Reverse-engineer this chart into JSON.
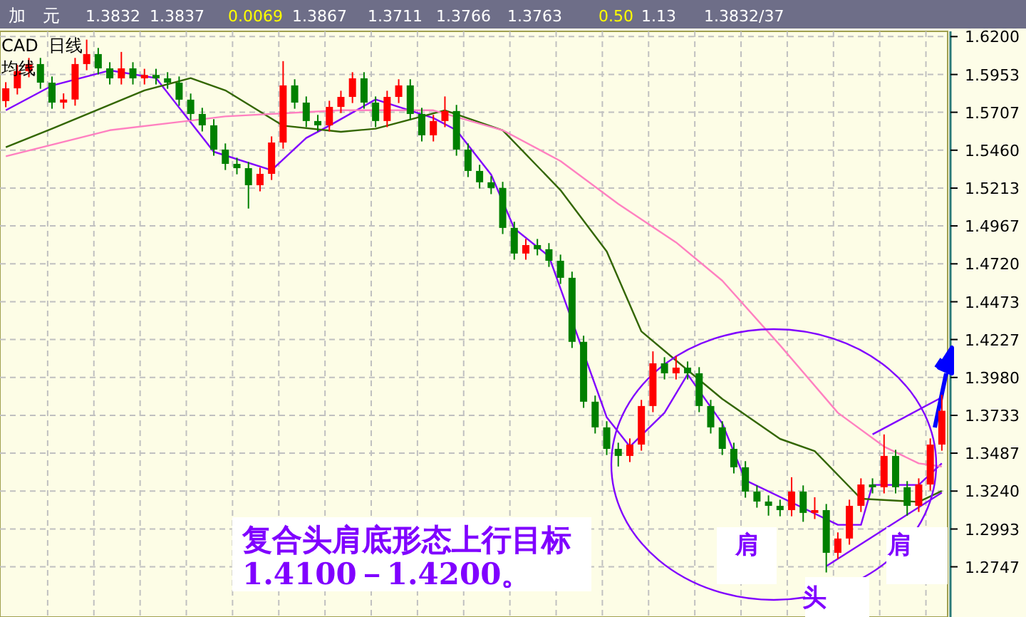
{
  "chart_data": {
    "type": "candlestick",
    "title": "加　元",
    "categories": [
      null,
      null,
      null,
      null,
      null,
      null,
      null,
      null,
      null,
      null,
      null,
      null,
      null,
      null,
      null,
      null,
      null,
      null,
      null,
      null,
      null,
      null,
      null,
      null,
      null,
      null,
      null,
      null,
      null,
      null,
      null,
      null,
      null,
      null,
      null,
      null,
      null,
      null,
      null,
      null,
      null,
      null,
      null,
      null,
      null,
      null,
      null,
      null,
      null,
      null,
      null,
      null,
      null,
      null,
      null,
      null,
      null,
      null,
      null,
      null,
      null,
      null,
      null,
      null,
      null,
      null,
      null,
      null,
      null,
      null,
      null,
      null,
      null,
      null,
      null,
      null,
      null,
      null,
      null,
      null,
      null,
      null
    ],
    "ohlc": [
      [
        1.578,
        1.5903,
        1.574,
        1.5863
      ],
      [
        1.5863,
        1.6015,
        1.5823,
        1.5975
      ],
      [
        1.5975,
        1.6061,
        1.5935,
        1.6021
      ],
      [
        1.6021,
        1.6061,
        1.586,
        1.59
      ],
      [
        1.59,
        1.594,
        1.573,
        1.577
      ],
      [
        1.577,
        1.583,
        1.573,
        1.579
      ],
      [
        1.579,
        1.6061,
        1.575,
        1.6021
      ],
      [
        1.6021,
        1.618,
        1.5981,
        1.6086
      ],
      [
        1.6086,
        1.6126,
        1.5953,
        1.5993
      ],
      [
        1.5993,
        1.6033,
        1.5888,
        1.5928
      ],
      [
        1.5928,
        1.61,
        1.5888,
        1.5993
      ],
      [
        1.5993,
        1.6033,
        1.5888,
        1.5928
      ],
      [
        1.5928,
        1.599,
        1.5888,
        1.595
      ],
      [
        1.595,
        1.599,
        1.5888,
        1.5928
      ],
      [
        1.5928,
        1.5968,
        1.586,
        1.59
      ],
      [
        1.59,
        1.594,
        1.5749,
        1.5789
      ],
      [
        1.5789,
        1.5829,
        1.5656,
        1.5696
      ],
      [
        1.5696,
        1.5736,
        1.5582,
        1.5622
      ],
      [
        1.5622,
        1.5662,
        1.5424,
        1.5464
      ],
      [
        1.5464,
        1.5504,
        1.5331,
        1.5371
      ],
      [
        1.5371,
        1.5411,
        1.5303,
        1.5343
      ],
      [
        1.5343,
        1.5383,
        1.508,
        1.5232
      ],
      [
        1.5232,
        1.5346,
        1.5192,
        1.5306
      ],
      [
        1.5306,
        1.555,
        1.5266,
        1.551
      ],
      [
        1.551,
        1.604,
        1.547,
        1.5882
      ],
      [
        1.5882,
        1.5922,
        1.573,
        1.577
      ],
      [
        1.577,
        1.581,
        1.561,
        1.565
      ],
      [
        1.565,
        1.569,
        1.5582,
        1.5622
      ],
      [
        1.5622,
        1.5782,
        1.5582,
        1.5742
      ],
      [
        1.5742,
        1.5847,
        1.5702,
        1.5807
      ],
      [
        1.5807,
        1.5968,
        1.5767,
        1.5928
      ],
      [
        1.5928,
        1.5968,
        1.573,
        1.577
      ],
      [
        1.577,
        1.581,
        1.561,
        1.565
      ],
      [
        1.565,
        1.5847,
        1.561,
        1.5807
      ],
      [
        1.5807,
        1.5922,
        1.5767,
        1.5882
      ],
      [
        1.5882,
        1.5922,
        1.5656,
        1.5696
      ],
      [
        1.5696,
        1.5736,
        1.5517,
        1.5557
      ],
      [
        1.5557,
        1.569,
        1.5517,
        1.565
      ],
      [
        1.565,
        1.581,
        1.561,
        1.5715
      ],
      [
        1.5715,
        1.5755,
        1.5424,
        1.5464
      ],
      [
        1.5464,
        1.5504,
        1.5285,
        1.5325
      ],
      [
        1.5325,
        1.5365,
        1.5211,
        1.5251
      ],
      [
        1.5251,
        1.5291,
        1.5174,
        1.5214
      ],
      [
        1.5214,
        1.5254,
        1.4914,
        1.4954
      ],
      [
        1.4954,
        1.4994,
        1.4747,
        1.4787
      ],
      [
        1.4787,
        1.4882,
        1.4747,
        1.4842
      ],
      [
        1.4842,
        1.4882,
        1.4775,
        1.4815
      ],
      [
        1.4815,
        1.4855,
        1.47,
        1.474
      ],
      [
        1.474,
        1.478,
        1.4589,
        1.4629
      ],
      [
        1.4629,
        1.4669,
        1.4172,
        1.4212
      ],
      [
        1.4212,
        1.4252,
        1.3782,
        1.3822
      ],
      [
        1.3822,
        1.3862,
        1.3615,
        1.3655
      ],
      [
        1.3655,
        1.3695,
        1.3475,
        1.3515
      ],
      [
        1.3515,
        1.3555,
        1.34,
        1.3469
      ],
      [
        1.3469,
        1.3583,
        1.3429,
        1.3543
      ],
      [
        1.3543,
        1.3834,
        1.3503,
        1.3794
      ],
      [
        1.3794,
        1.415,
        1.3754,
        1.4072
      ],
      [
        1.4072,
        1.4112,
        1.3967,
        1.4007
      ],
      [
        1.4007,
        1.412,
        1.3967,
        1.4044
      ],
      [
        1.4044,
        1.4084,
        1.3967,
        1.4007
      ],
      [
        1.4007,
        1.4047,
        1.3754,
        1.3794
      ],
      [
        1.3794,
        1.3834,
        1.3615,
        1.3655
      ],
      [
        1.3655,
        1.3695,
        1.3475,
        1.3515
      ],
      [
        1.3515,
        1.3555,
        1.3355,
        1.3395
      ],
      [
        1.3395,
        1.3435,
        1.3197,
        1.3237
      ],
      [
        1.3237,
        1.3277,
        1.3132,
        1.3172
      ],
      [
        1.3172,
        1.3212,
        1.308,
        1.3144
      ],
      [
        1.3144,
        1.3184,
        1.3076,
        1.3116
      ],
      [
        1.3116,
        1.333,
        1.3076,
        1.3237
      ],
      [
        1.3237,
        1.3277,
        1.304,
        1.3098
      ],
      [
        1.3098,
        1.32,
        1.3058,
        1.3116
      ],
      [
        1.3116,
        1.3156,
        1.271,
        1.2838
      ],
      [
        1.2838,
        1.2971,
        1.2798,
        1.2931
      ],
      [
        1.2931,
        1.3184,
        1.2891,
        1.3144
      ],
      [
        1.3144,
        1.3323,
        1.3104,
        1.3283
      ],
      [
        1.3283,
        1.3323,
        1.3225,
        1.3265
      ],
      [
        1.3265,
        1.3609,
        1.3225,
        1.3469
      ],
      [
        1.3469,
        1.3509,
        1.3225,
        1.3265
      ],
      [
        1.3265,
        1.3305,
        1.308,
        1.3144
      ],
      [
        1.3144,
        1.3323,
        1.3104,
        1.3283
      ],
      [
        1.3283,
        1.3583,
        1.3243,
        1.3543
      ],
      [
        1.3543,
        1.3867,
        1.3503,
        1.3763
      ]
    ],
    "series": [
      {
        "type": "line",
        "color": "#8000ff",
        "values": [
          1.572,
          null,
          null,
          null,
          1.588,
          null,
          null,
          null,
          null,
          1.598,
          null,
          null,
          null,
          1.593,
          null,
          null,
          null,
          null,
          1.545,
          null,
          null,
          null,
          null,
          1.533,
          null,
          null,
          1.554,
          null,
          1.562,
          null,
          null,
          null,
          1.579,
          null,
          null,
          null,
          null,
          1.567,
          null,
          1.559,
          null,
          null,
          1.53,
          null,
          1.495,
          null,
          null,
          1.477,
          null,
          null,
          null,
          null,
          1.372,
          null,
          1.353,
          null,
          null,
          1.375,
          null,
          1.4,
          null,
          null,
          1.368,
          null,
          1.331,
          null,
          null,
          null,
          null,
          1.313,
          null,
          null,
          1.302,
          null,
          1.302,
          1.328,
          null,
          null,
          null,
          1.328,
          null,
          1.342
        ]
      },
      {
        "type": "line",
        "color": "#336600",
        "values": [
          1.548,
          null,
          null,
          null,
          1.56,
          null,
          null,
          null,
          null,
          null,
          null,
          null,
          1.585,
          null,
          null,
          null,
          1.593,
          null,
          null,
          1.585,
          null,
          null,
          null,
          null,
          1.562,
          null,
          null,
          null,
          null,
          1.558,
          null,
          null,
          1.56,
          null,
          null,
          null,
          null,
          null,
          1.572,
          null,
          null,
          null,
          null,
          1.559,
          null,
          null,
          null,
          null,
          1.52,
          null,
          null,
          null,
          1.48,
          null,
          null,
          1.428,
          null,
          null,
          1.409,
          null,
          null,
          null,
          1.384,
          null,
          null,
          null,
          null,
          1.358,
          null,
          null,
          1.35,
          null,
          null,
          null,
          1.319,
          null,
          null,
          null,
          null,
          1.317,
          null,
          1.324
        ]
      },
      {
        "type": "line",
        "color": "#ff80c0",
        "values": [
          1.542,
          null,
          null,
          null,
          null,
          null,
          null,
          null,
          null,
          1.559,
          null,
          null,
          null,
          null,
          null,
          null,
          null,
          null,
          null,
          1.568,
          null,
          null,
          null,
          null,
          null,
          null,
          null,
          null,
          null,
          1.572,
          null,
          null,
          null,
          null,
          null,
          null,
          null,
          1.572,
          null,
          null,
          null,
          null,
          null,
          1.559,
          null,
          null,
          null,
          null,
          1.539,
          null,
          null,
          null,
          null,
          1.511,
          null,
          null,
          null,
          null,
          1.486,
          null,
          null,
          null,
          1.461,
          null,
          null,
          null,
          null,
          1.419,
          null,
          null,
          null,
          null,
          1.375,
          null,
          null,
          null,
          1.353,
          null,
          null,
          1.342,
          null,
          1.34
        ]
      },
      {
        "type": "line",
        "color": "#8000ff",
        "values": [
          null,
          null,
          null,
          null,
          null,
          null,
          null,
          null,
          null,
          null,
          null,
          null,
          null,
          null,
          null,
          null,
          null,
          null,
          null,
          null,
          null,
          null,
          null,
          null,
          null,
          null,
          null,
          null,
          null,
          null,
          null,
          null,
          null,
          null,
          null,
          null,
          null,
          null,
          null,
          null,
          null,
          null,
          null,
          null,
          null,
          null,
          null,
          null,
          null,
          null,
          null,
          null,
          null,
          null,
          null,
          null,
          null,
          null,
          null,
          null,
          null,
          null,
          null,
          null,
          null,
          null,
          null,
          null,
          null,
          null,
          null,
          null,
          null,
          null,
          null,
          1.361,
          null,
          null,
          null,
          null,
          null,
          1.385
        ]
      },
      {
        "type": "line",
        "color": "#8000ff",
        "values": [
          null,
          null,
          null,
          null,
          null,
          null,
          null,
          null,
          null,
          null,
          null,
          null,
          null,
          null,
          null,
          null,
          null,
          null,
          null,
          null,
          null,
          null,
          null,
          null,
          null,
          null,
          null,
          null,
          null,
          null,
          null,
          null,
          null,
          null,
          null,
          null,
          null,
          null,
          null,
          null,
          null,
          null,
          null,
          null,
          null,
          null,
          null,
          null,
          null,
          null,
          null,
          null,
          null,
          null,
          null,
          null,
          null,
          null,
          null,
          null,
          null,
          null,
          null,
          null,
          null,
          null,
          null,
          null,
          null,
          null,
          null,
          1.275,
          null,
          null,
          null,
          null,
          null,
          null,
          null,
          null,
          null,
          1.323
        ]
      }
    ],
    "ylim": [
      1.242,
      1.6234
    ],
    "yticks": [
      {
        "value": 1.62,
        "label": "1.6200"
      },
      1.5953,
      1.5707,
      {
        "value": 1.546,
        "label": "1.5460"
      },
      1.5213,
      1.4967,
      {
        "value": 1.472,
        "label": "1.4720"
      },
      1.4473,
      1.4227,
      {
        "value": 1.398,
        "label": "1.3980"
      },
      1.3733,
      1.3487,
      {
        "value": 1.324,
        "label": "1.3240"
      },
      1.2993,
      1.2747
    ],
    "tick_labels": "y",
    "grid": true,
    "annotations": [
      "1.3832",
      "1.3837",
      "0.0069",
      "1.3867",
      "1.3711",
      "1.3766",
      "1.3763",
      "0.50",
      "1.13",
      "1.3832/37",
      "CAD",
      "日线",
      "均线",
      "复合头肩底形态上行目标1.4100－1.4200。",
      "肩",
      "头",
      "肩"
    ]
  }
}
